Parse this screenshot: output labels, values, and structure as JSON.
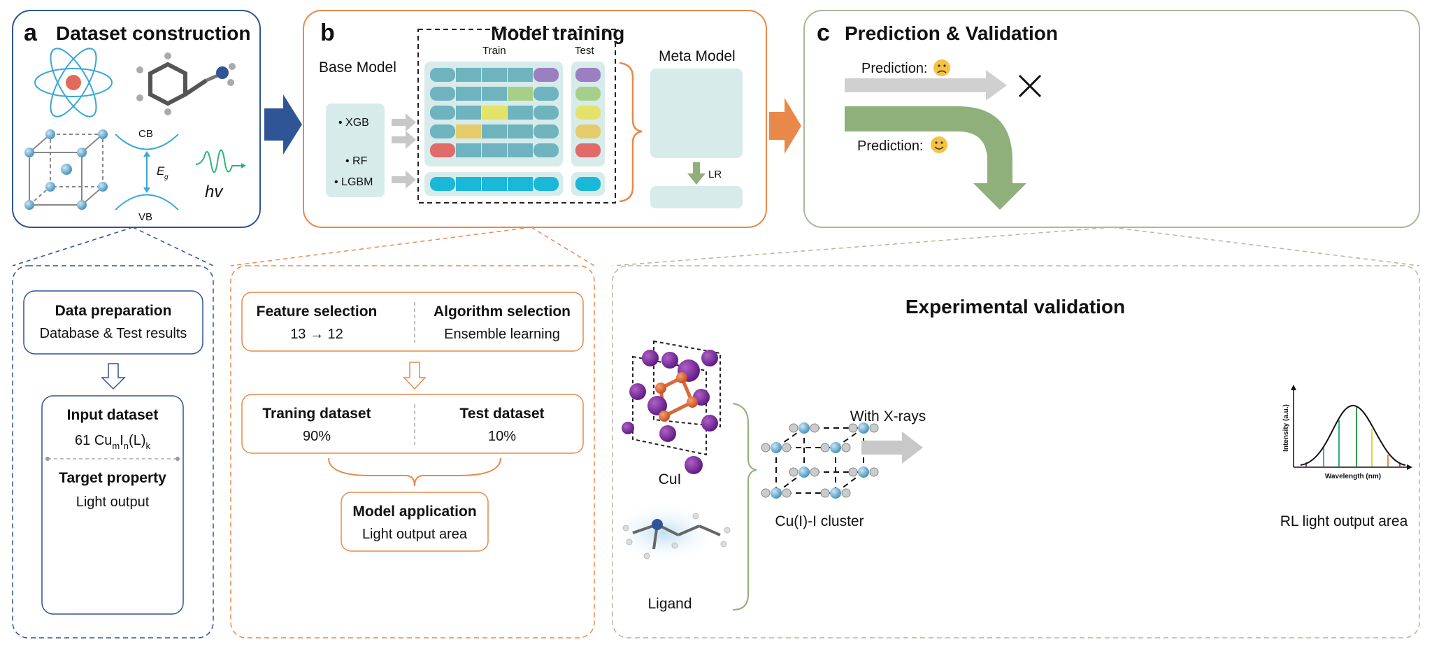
{
  "panel_a": {
    "letter": "a",
    "title": "Dataset construction",
    "cb": "CB",
    "vb": "VB",
    "eg_main": "E",
    "eg_sub": "g",
    "hv": "hv"
  },
  "panel_b": {
    "letter": "b",
    "title": "Model training",
    "base_model": "Base Model",
    "models": [
      "• XGB",
      "• RF",
      "• LGBM"
    ],
    "train": "Train",
    "test": "Test",
    "meta_model": "Meta Model",
    "lr": "LR"
  },
  "panel_c": {
    "letter": "c",
    "title": "Prediction & Validation",
    "prediction_bad": "Prediction:",
    "prediction_good": "Prediction:"
  },
  "bottom_a": {
    "data_prep": "Data preparation",
    "data_prep_sub": "Database & Test results",
    "input_dataset": "Input dataset",
    "input_prefix": "61 Cu",
    "input_m": "m",
    "input_i": "I",
    "input_n": "n",
    "input_l": "(L)",
    "input_k": "k",
    "target_property": "Target property",
    "target_value": "Light output"
  },
  "bottom_b": {
    "feature_selection": "Feature selection",
    "feature_value": "13 → 12",
    "algorithm_selection": "Algorithm selection",
    "algorithm_value": "Ensemble learning",
    "training_dataset": "Traning dataset",
    "training_pct": "90%",
    "test_dataset": "Test dataset",
    "test_pct": "10%",
    "model_application": "Model application",
    "model_application_value": "Light output area"
  },
  "bottom_c": {
    "title": "Experimental validation",
    "cui": "CuI",
    "ligand": "Ligand",
    "cluster": "Cu(I)-I cluster",
    "with_xrays": "With X-rays",
    "y_axis": "Intensity (a.u.)",
    "x_axis": "Wavelength (nm)",
    "rl_label": "RL light output area"
  },
  "colors": {
    "blue": "#2f5597",
    "orange": "#e8894a",
    "green": "#8fb07a",
    "teal": "#6fb3bf",
    "purple": "#9b7fc0",
    "lightgreen": "#a6d08a",
    "yellow": "#e3e36a",
    "gold": "#e6cb6a",
    "red": "#e06b6b",
    "cyan": "#1ab8d8"
  }
}
